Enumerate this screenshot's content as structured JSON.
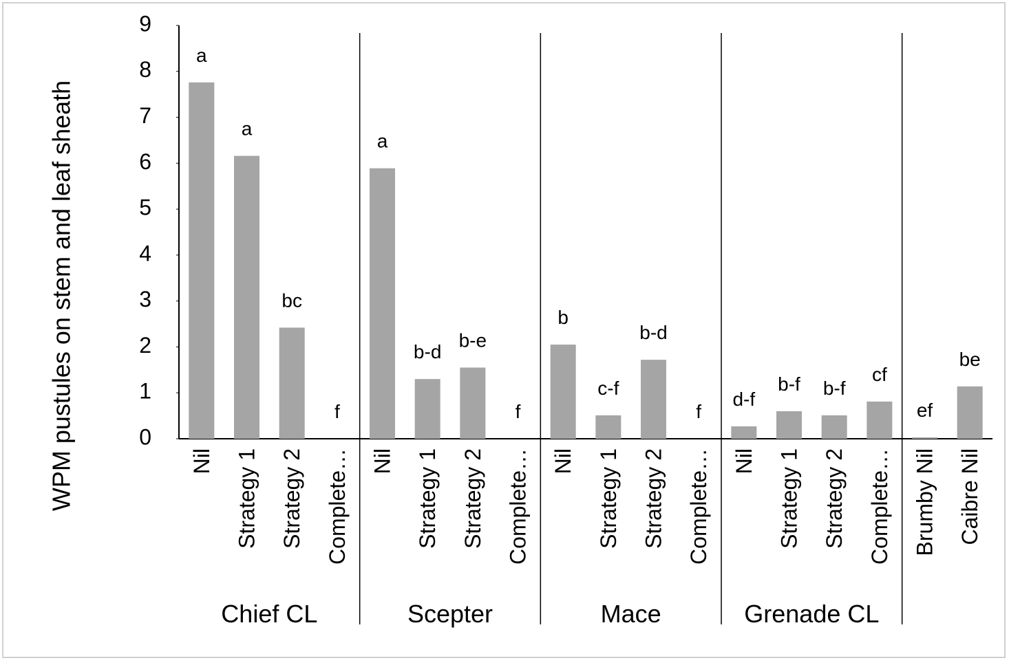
{
  "chart_data": {
    "type": "bar",
    "y_label": "WPM pustules on stem and leaf sheath",
    "ylim": [
      0,
      9
    ],
    "yticks": [
      0,
      1,
      2,
      3,
      4,
      5,
      6,
      7,
      8,
      9
    ],
    "color": "#a5a5a5",
    "groups": [
      {
        "name": "Chief CL",
        "categories": [
          "Nil",
          "Strategy 1",
          "Strategy 2",
          "Complete…"
        ],
        "values": [
          7.76,
          6.16,
          2.42,
          0
        ],
        "letters": [
          "a",
          "a",
          "bc",
          "f"
        ]
      },
      {
        "name": "Scepter",
        "categories": [
          "Nil",
          "Strategy 1",
          "Strategy 2",
          "Complete…"
        ],
        "values": [
          5.89,
          1.3,
          1.55,
          0
        ],
        "letters": [
          "a",
          "b-d",
          "b-e",
          "f"
        ]
      },
      {
        "name": "Mace",
        "categories": [
          "Nil",
          "Strategy 1",
          "Strategy 2",
          "Complete…"
        ],
        "values": [
          2.05,
          0.51,
          1.72,
          0
        ],
        "letters": [
          "b",
          "c-f",
          "b-d",
          "f"
        ]
      },
      {
        "name": "Grenade CL",
        "categories": [
          "Nil",
          "Strategy 1",
          "Strategy 2",
          "Complete…"
        ],
        "values": [
          0.27,
          0.6,
          0.51,
          0.81
        ],
        "letters": [
          "d-f",
          "b-f",
          "b-f",
          "cf"
        ]
      },
      {
        "name": null,
        "categories": [
          "Brumby Nil",
          "Caibre Nil"
        ],
        "values": [
          0.03,
          1.14
        ],
        "letters": [
          "ef",
          "be"
        ]
      }
    ]
  }
}
